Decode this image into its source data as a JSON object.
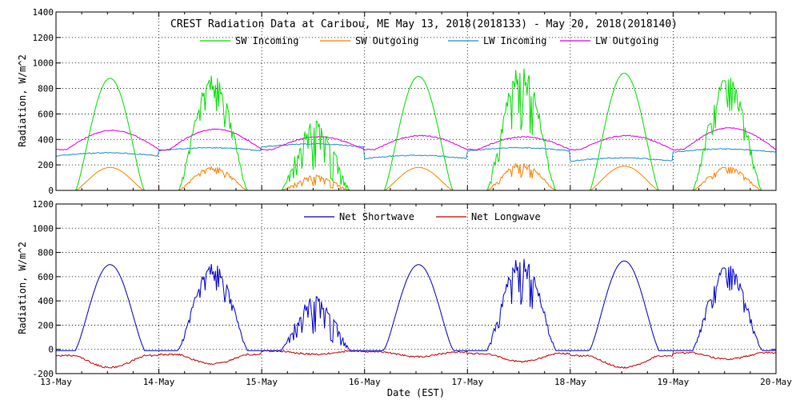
{
  "chart_data": [
    {
      "type": "line",
      "title": "CREST Radiation Data at Caribou, ME   May 13, 2018(2018133) - May 20, 2018(2018140)",
      "ylabel": "Radiation, W/m^2",
      "xlabel": "",
      "ylim": [
        0,
        1400
      ],
      "yticks": [
        0,
        200,
        400,
        600,
        800,
        1000,
        1200,
        1400
      ],
      "xlim": [
        "13-May",
        "20-May"
      ],
      "grid": true,
      "legend_position": "top",
      "series": [
        {
          "name": "SW Incoming",
          "color": "#00e000",
          "peaks": [
            880,
            920,
            550,
            895,
            1000,
            920,
            910
          ],
          "values_daily_max": [
            880,
            920,
            550,
            895,
            1000,
            920,
            910
          ]
        },
        {
          "name": "SW Outgoing",
          "color": "#ff8000",
          "values_daily_max": [
            180,
            190,
            120,
            180,
            220,
            190,
            190
          ]
        },
        {
          "name": "LW Incoming",
          "color": "#1e90d0",
          "values_daily_mean": [
            290,
            330,
            360,
            270,
            330,
            250,
            320
          ]
        },
        {
          "name": "LW Outgoing",
          "color": "#e000e0",
          "values_daily_max": [
            470,
            480,
            420,
            430,
            420,
            430,
            490
          ]
        }
      ]
    },
    {
      "type": "line",
      "ylabel": "Radiation, W/m^2",
      "xlabel": "Date (EST)",
      "ylim": [
        -200,
        1200
      ],
      "yticks": [
        -200,
        0,
        200,
        400,
        600,
        800,
        1000,
        1200
      ],
      "categories": [
        "13-May",
        "14-May",
        "15-May",
        "16-May",
        "17-May",
        "18-May",
        "19-May",
        "20-May"
      ],
      "grid": true,
      "legend_position": "top",
      "series": [
        {
          "name": "Net Shortwave",
          "color": "#0000cc",
          "values_daily_max": [
            700,
            720,
            440,
            700,
            780,
            730,
            710
          ]
        },
        {
          "name": "Net Longwave",
          "color": "#cc0000",
          "values_daily_min": [
            -150,
            -120,
            -40,
            -60,
            -100,
            -150,
            -80
          ]
        }
      ]
    }
  ]
}
